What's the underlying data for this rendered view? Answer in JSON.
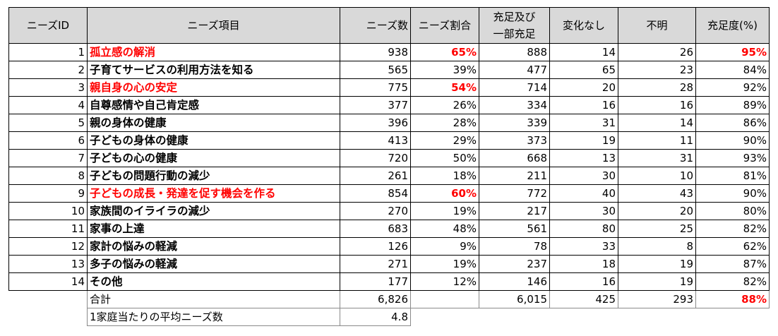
{
  "headers": {
    "id": "ニーズID",
    "item": "ニーズ項目",
    "count": "ニーズ数",
    "ratio": "ニーズ割合",
    "fulfilled_line1": "充足及び",
    "fulfilled_line2": "一部充足",
    "nochange": "変化なし",
    "unknown": "不明",
    "degree": "充足度(%)"
  },
  "rows": [
    {
      "id": "1",
      "item": "孤立感の解消",
      "count": "938",
      "ratio": "65%",
      "fulfilled": "888",
      "nochange": "14",
      "unknown": "26",
      "degree": "95%",
      "item_red": true,
      "ratio_red": true,
      "degree_red": true
    },
    {
      "id": "2",
      "item": "子育てサービスの利用方法を知る",
      "count": "565",
      "ratio": "39%",
      "fulfilled": "477",
      "nochange": "65",
      "unknown": "23",
      "degree": "84%"
    },
    {
      "id": "3",
      "item": "親自身の心の安定",
      "count": "775",
      "ratio": "54%",
      "fulfilled": "714",
      "nochange": "20",
      "unknown": "28",
      "degree": "92%",
      "item_red": true,
      "ratio_red": true
    },
    {
      "id": "4",
      "item": "自尊感情や自己肯定感",
      "count": "377",
      "ratio": "26%",
      "fulfilled": "334",
      "nochange": "16",
      "unknown": "16",
      "degree": "89%"
    },
    {
      "id": "5",
      "item": "親の身体の健康",
      "count": "396",
      "ratio": "28%",
      "fulfilled": "339",
      "nochange": "31",
      "unknown": "14",
      "degree": "86%"
    },
    {
      "id": "6",
      "item": "子どもの身体の健康",
      "count": "413",
      "ratio": "29%",
      "fulfilled": "373",
      "nochange": "19",
      "unknown": "11",
      "degree": "90%"
    },
    {
      "id": "7",
      "item": "子どもの心の健康",
      "count": "720",
      "ratio": "50%",
      "fulfilled": "668",
      "nochange": "13",
      "unknown": "31",
      "degree": "93%"
    },
    {
      "id": "8",
      "item": "子どもの問題行動の減少",
      "count": "261",
      "ratio": "18%",
      "fulfilled": "211",
      "nochange": "30",
      "unknown": "10",
      "degree": "81%"
    },
    {
      "id": "9",
      "item": "子どもの成長・発達を促す機会を作る",
      "count": "854",
      "ratio": "60%",
      "fulfilled": "772",
      "nochange": "40",
      "unknown": "43",
      "degree": "90%",
      "item_red": true,
      "ratio_red": true
    },
    {
      "id": "10",
      "item": "家族間のイライラの減少",
      "count": "270",
      "ratio": "19%",
      "fulfilled": "217",
      "nochange": "30",
      "unknown": "20",
      "degree": "80%"
    },
    {
      "id": "11",
      "item": "家事の上達",
      "count": "683",
      "ratio": "48%",
      "fulfilled": "561",
      "nochange": "80",
      "unknown": "25",
      "degree": "82%"
    },
    {
      "id": "12",
      "item": "家計の悩みの軽減",
      "count": "126",
      "ratio": "9%",
      "fulfilled": "78",
      "nochange": "33",
      "unknown": "8",
      "degree": "62%"
    },
    {
      "id": "13",
      "item": "多子の悩みの軽減",
      "count": "271",
      "ratio": "19%",
      "fulfilled": "237",
      "nochange": "18",
      "unknown": "19",
      "degree": "87%"
    },
    {
      "id": "14",
      "item": "その他",
      "count": "177",
      "ratio": "12%",
      "fulfilled": "146",
      "nochange": "16",
      "unknown": "19",
      "degree": "82%"
    }
  ],
  "total": {
    "label": "合計",
    "count": "6,826",
    "fulfilled": "6,015",
    "nochange": "425",
    "unknown": "293",
    "degree": "88%"
  },
  "average": {
    "label": "1家庭当たりの平均ニーズ数",
    "value": "4.8"
  },
  "colors": {
    "header_bg": "#d9d9d9",
    "highlight": "#ff0000"
  }
}
